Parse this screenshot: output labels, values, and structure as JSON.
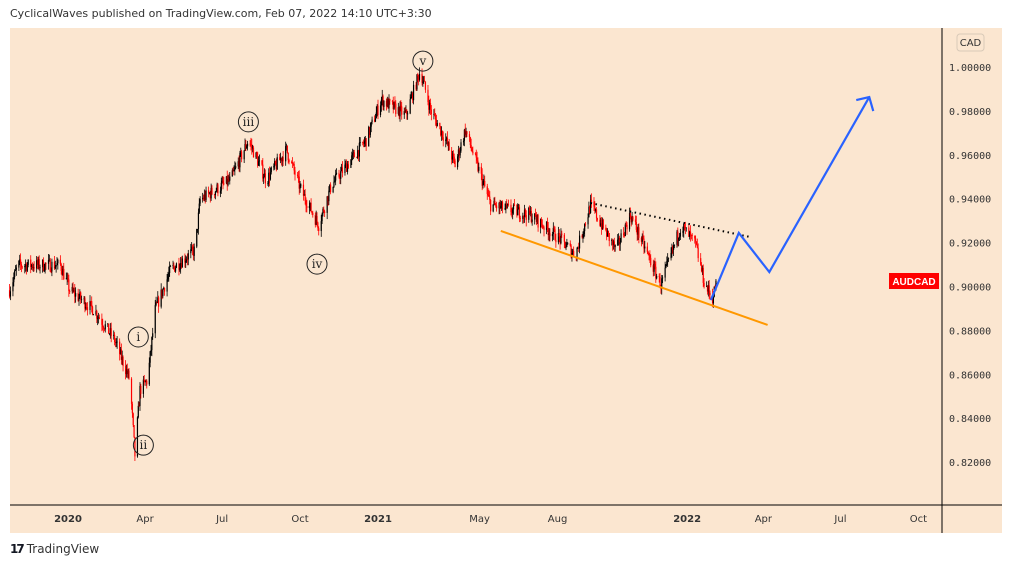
{
  "header": "CyclicalWaves published on TradingView.com, Feb 07, 2022 14:10 UTC+3:30",
  "brand": "TradingView",
  "colors": {
    "background": "#fbe6d0",
    "up": "#000000",
    "down": "#ff0000",
    "support": "#ff9800",
    "projection": "#2962ff",
    "symbol_badge": "#ff0000"
  },
  "chart_data": {
    "type": "candlestick",
    "symbol": "AUDCAD",
    "currency": "CAD",
    "y_ticks": [
      "1.00000",
      "0.98000",
      "0.96000",
      "0.94000",
      "0.92000",
      "0.90000",
      "0.88000",
      "0.86000",
      "0.84000",
      "0.82000"
    ],
    "ylim": [
      0.805,
      1.018
    ],
    "x_ticks": [
      "2020",
      "Apr",
      "Jul",
      "Oct",
      "2021",
      "May",
      "Aug",
      "2022",
      "Apr",
      "Jul",
      "Oct"
    ],
    "x_tick_dates": [
      "2020-01-01",
      "2020-04-01",
      "2020-07-01",
      "2020-10-01",
      "2021-01-01",
      "2021-05-01",
      "2021-08-01",
      "2022-01-01",
      "2022-04-01",
      "2022-07-01",
      "2022-10-01"
    ],
    "xlim": [
      "2019-10-21",
      "2022-12-15"
    ],
    "approx_path": [
      [
        "2019-10-24",
        0.8984
      ],
      [
        "2019-11-03",
        0.9098
      ],
      [
        "2019-12-23",
        0.9098
      ],
      [
        "2020-01-03",
        0.8984
      ],
      [
        "2020-02-01",
        0.8893
      ],
      [
        "2020-02-25",
        0.8756
      ],
      [
        "2020-03-14",
        0.8574
      ],
      [
        "2020-03-20",
        0.8232
      ],
      [
        "2020-03-26",
        0.8528
      ],
      [
        "2020-04-04",
        0.8574
      ],
      [
        "2020-04-13",
        0.8893
      ],
      [
        "2020-05-01",
        0.9075
      ],
      [
        "2020-05-30",
        0.9166
      ],
      [
        "2020-06-05",
        0.9394
      ],
      [
        "2020-07-11",
        0.9485
      ],
      [
        "2020-08-01",
        0.9667
      ],
      [
        "2020-08-22",
        0.9485
      ],
      [
        "2020-09-15",
        0.9622
      ],
      [
        "2020-10-02",
        0.944
      ],
      [
        "2020-10-23",
        0.928
      ],
      [
        "2020-11-07",
        0.9462
      ],
      [
        "2020-11-30",
        0.9576
      ],
      [
        "2020-12-18",
        0.9667
      ],
      [
        "2021-01-05",
        0.985
      ],
      [
        "2021-02-03",
        0.9781
      ],
      [
        "2021-02-20",
        0.9986
      ],
      [
        "2021-03-04",
        0.9804
      ],
      [
        "2021-03-22",
        0.9667
      ],
      [
        "2021-04-02",
        0.9553
      ],
      [
        "2021-04-14",
        0.9713
      ],
      [
        "2021-04-26",
        0.9576
      ],
      [
        "2021-05-14",
        0.9371
      ],
      [
        "2021-06-30",
        0.9326
      ],
      [
        "2021-08-05",
        0.9212
      ],
      [
        "2021-08-22",
        0.9143
      ],
      [
        "2021-09-09",
        0.9371
      ],
      [
        "2021-10-09",
        0.9166
      ],
      [
        "2021-10-26",
        0.9326
      ],
      [
        "2021-12-01",
        0.9007
      ],
      [
        "2021-12-25",
        0.928
      ],
      [
        "2022-01-11",
        0.9189
      ],
      [
        "2022-01-22",
        0.9007
      ],
      [
        "2022-01-31",
        0.8948
      ],
      [
        "2022-02-07",
        0.9052
      ]
    ],
    "annotations": {
      "waves": [
        {
          "label": "i",
          "date": "2020-03-24",
          "price": 0.877
        },
        {
          "label": "ii",
          "date": "2020-03-30",
          "price": 0.8277
        },
        {
          "label": "iii",
          "date": "2020-08-01",
          "price": 0.975
        },
        {
          "label": "iv",
          "date": "2020-10-21",
          "price": 0.9102
        },
        {
          "label": "v",
          "date": "2021-02-23",
          "price": 1.0027
        }
      ],
      "support_line": [
        [
          "2021-05-26",
          0.9253
        ],
        [
          "2022-04-06",
          0.8825
        ]
      ],
      "resistance_line": [
        [
          "2021-09-09",
          0.938
        ],
        [
          "2022-03-17",
          0.9225
        ]
      ],
      "projection": [
        [
          "2022-01-29",
          0.8938
        ],
        [
          "2022-03-03",
          0.9244
        ],
        [
          "2022-04-08",
          0.9066
        ],
        [
          "2022-08-04",
          0.9863
        ]
      ]
    }
  }
}
